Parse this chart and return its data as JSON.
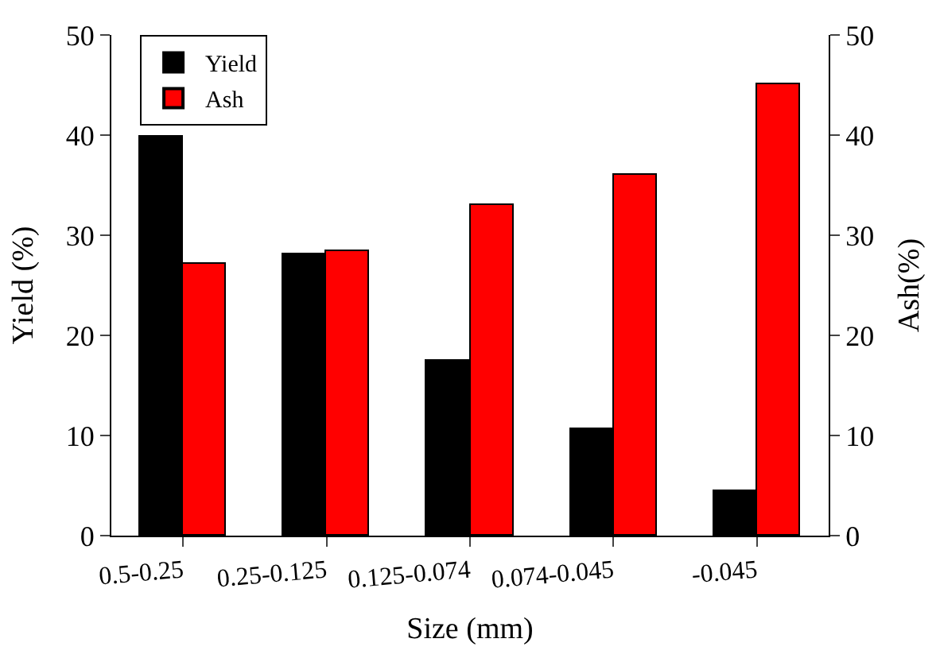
{
  "chart_data": {
    "type": "bar",
    "xlabel": "Size (mm)",
    "ylabel": "Yield (%)",
    "y2label": "Ash(%)",
    "categories": [
      "0.5-0.25",
      "0.25-0.125",
      "0.125-0.074",
      "0.074-0.045",
      "-0.045"
    ],
    "series": [
      {
        "name": "Yield",
        "color": "#000000",
        "values": [
          39.8,
          28.1,
          17.4,
          10.7,
          4.5
        ]
      },
      {
        "name": "Ash",
        "color": "#ff0000",
        "values": [
          27.1,
          28.4,
          33.0,
          36.1,
          45.1
        ],
        "axis": "y2"
      }
    ],
    "ylim": [
      0,
      50
    ],
    "yticks": [
      0,
      10,
      20,
      30,
      40,
      50
    ],
    "y2lim": [
      0,
      50
    ],
    "y2ticks": [
      0,
      10,
      20,
      30,
      40,
      50
    ],
    "legend": "top left"
  }
}
